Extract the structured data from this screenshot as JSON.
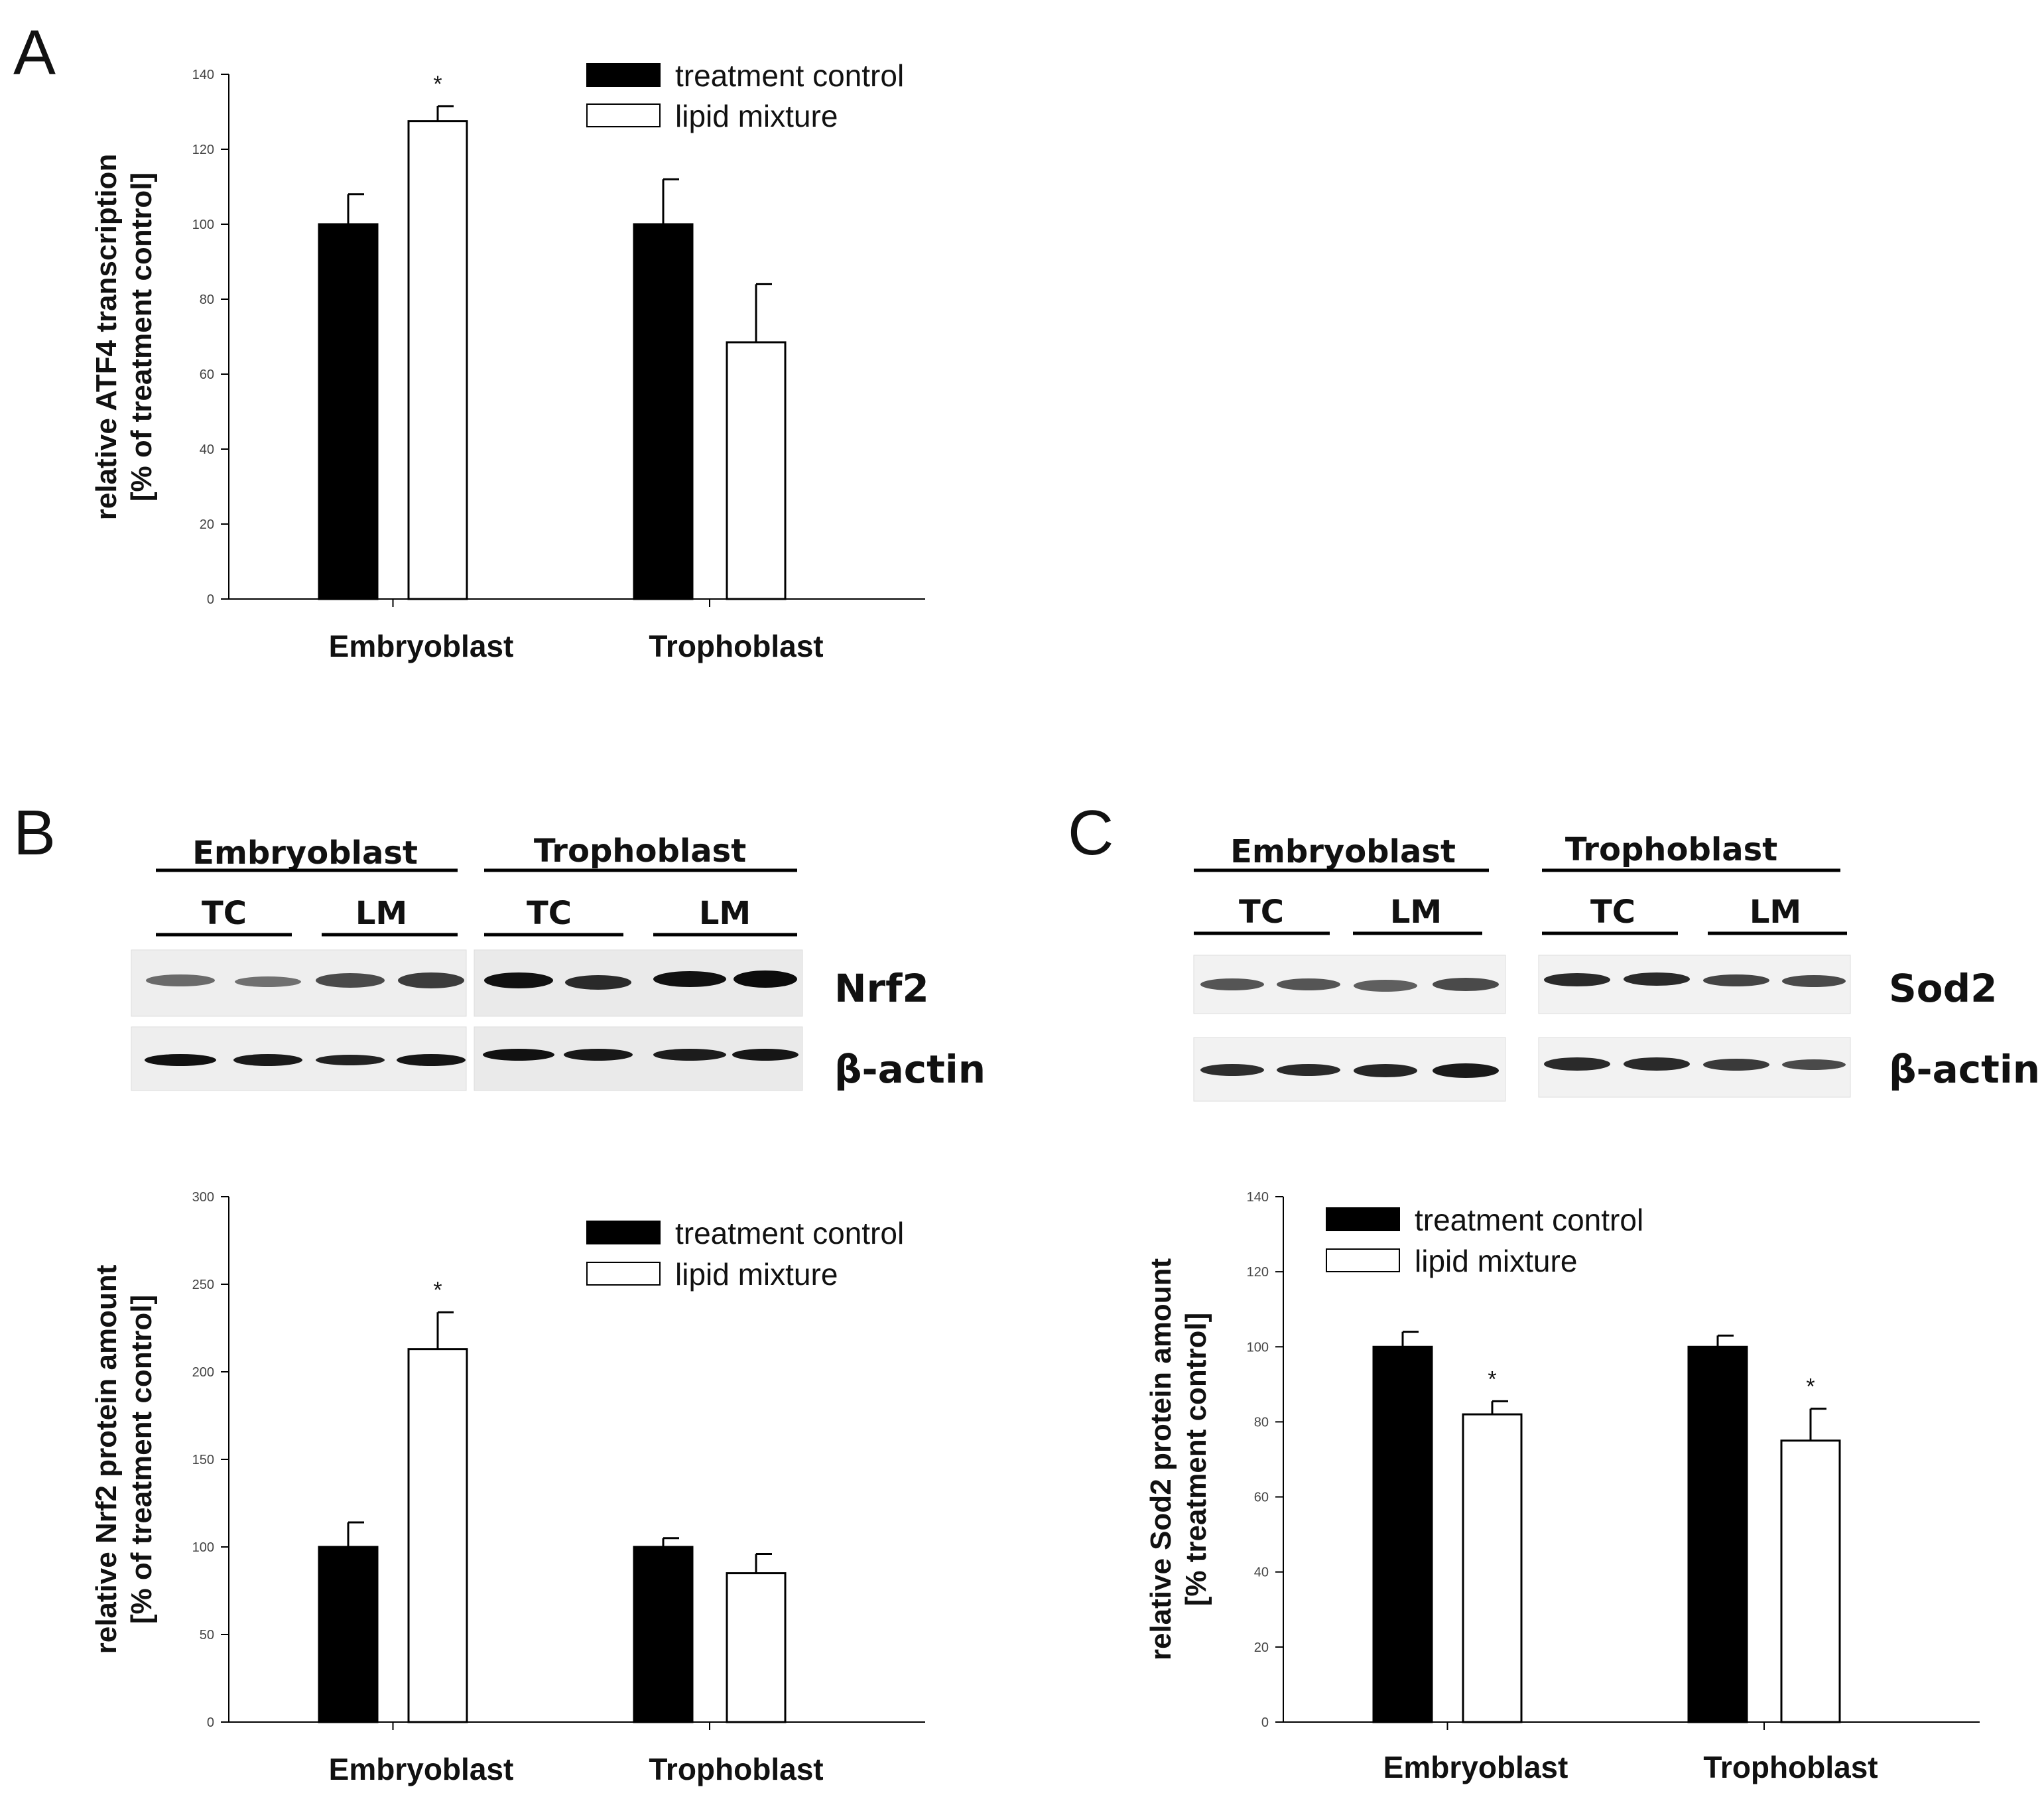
{
  "panel_letters": [
    "A",
    "B",
    "C"
  ],
  "chart_data": [
    {
      "id": "A",
      "type": "bar",
      "title": "",
      "xlabel": "",
      "ylabel_lines": [
        "relative ATF4 transcription",
        "[% of treatment control]"
      ],
      "categories": [
        "Embryoblast",
        "Trophoblast"
      ],
      "series": [
        {
          "name": "treatment control",
          "color": "#000000",
          "values": [
            100,
            100
          ],
          "errors": [
            8,
            12
          ]
        },
        {
          "name": "lipid mixture",
          "color": "#ffffff",
          "values": [
            127.5,
            68.5
          ],
          "errors": [
            4,
            15.5
          ]
        }
      ],
      "significance": [
        [
          false,
          false
        ],
        [
          true,
          false
        ]
      ],
      "ylim": [
        0,
        140
      ],
      "yticks": [
        0,
        20,
        40,
        60,
        80,
        100,
        120,
        140
      ],
      "legend": "top-right"
    },
    {
      "id": "B",
      "type": "bar",
      "title": "",
      "xlabel": "",
      "ylabel_lines": [
        "relative Nrf2 protein amount",
        "[% of treatment control]"
      ],
      "categories": [
        "Embryoblast",
        "Trophoblast"
      ],
      "series": [
        {
          "name": "treatment control",
          "color": "#000000",
          "values": [
            100,
            100
          ],
          "errors": [
            14,
            5
          ]
        },
        {
          "name": "lipid mixture",
          "color": "#ffffff",
          "values": [
            213,
            85
          ],
          "errors": [
            21,
            11
          ]
        }
      ],
      "significance": [
        [
          false,
          false
        ],
        [
          true,
          false
        ]
      ],
      "ylim": [
        0,
        300
      ],
      "yticks": [
        0,
        50,
        100,
        150,
        200,
        250,
        300
      ],
      "legend": "top-right"
    },
    {
      "id": "C",
      "type": "bar",
      "title": "",
      "xlabel": "",
      "ylabel_lines": [
        "relative Sod2 protein amount",
        "[% treatment control]"
      ],
      "categories": [
        "Embryoblast",
        "Trophoblast"
      ],
      "series": [
        {
          "name": "treatment control",
          "color": "#000000",
          "values": [
            100,
            100
          ],
          "errors": [
            4,
            3
          ]
        },
        {
          "name": "lipid mixture",
          "color": "#ffffff",
          "values": [
            82,
            75
          ],
          "errors": [
            3.5,
            8.5
          ]
        }
      ],
      "significance": [
        [
          false,
          false
        ],
        [
          true,
          true
        ]
      ],
      "ylim": [
        0,
        140
      ],
      "yticks": [
        0,
        20,
        40,
        60,
        80,
        100,
        120,
        140
      ],
      "legend": "top-left"
    }
  ],
  "blots": {
    "B": {
      "groups": [
        "Embryoblast",
        "Trophoblast"
      ],
      "lanes": [
        "TC",
        "LM",
        "TC",
        "LM"
      ],
      "proteins": [
        "Nrf2",
        "β-actin"
      ]
    },
    "C": {
      "groups": [
        "Embryoblast",
        "Trophoblast"
      ],
      "lanes": [
        "TC",
        "LM",
        "TC",
        "LM"
      ],
      "proteins": [
        "Sod2",
        "β-actin"
      ]
    }
  }
}
